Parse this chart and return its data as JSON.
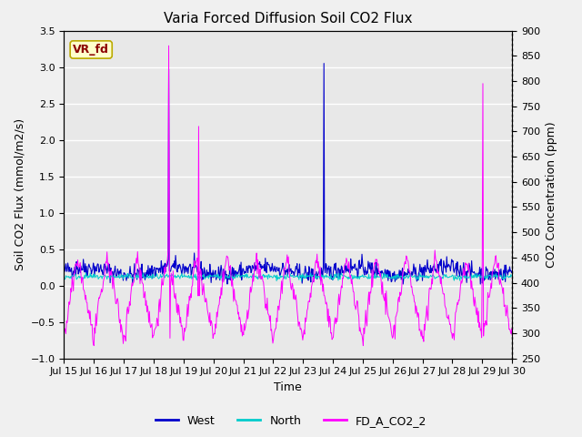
{
  "title": "Varia Forced Diffusion Soil CO2 Flux",
  "xlabel": "Time",
  "ylabel_left": "Soil CO2 Flux (mmol/m2/s)",
  "ylabel_right": "CO2 Concentration (ppm)",
  "ylim_left": [
    -1.0,
    3.5
  ],
  "ylim_right": [
    250,
    900
  ],
  "xtick_labels": [
    "Jul 15",
    "Jul 16",
    "Jul 17",
    "Jul 18",
    "Jul 19",
    "Jul 20",
    "Jul 21",
    "Jul 22",
    "Jul 23",
    "Jul 24",
    "Jul 25",
    "Jul 26",
    "Jul 27",
    "Jul 28",
    "Jul 29",
    "Jul 30"
  ],
  "annotation_text": "VR_fd",
  "color_west": "#0000cc",
  "color_north": "#00cccc",
  "color_co2": "#ff00ff",
  "legend_labels": [
    "West",
    "North",
    "FD_A_CO2_2"
  ],
  "bg_color": "#e8e8e8",
  "grid_color": "#ffffff",
  "title_fontsize": 11,
  "label_fontsize": 9,
  "tick_fontsize": 8,
  "legend_fontsize": 9,
  "left_yticks": [
    -1.0,
    -0.5,
    0.0,
    0.5,
    1.0,
    1.5,
    2.0,
    2.5,
    3.0,
    3.5
  ],
  "right_yticks": [
    250,
    300,
    350,
    400,
    450,
    500,
    550,
    600,
    650,
    700,
    750,
    800,
    850,
    900
  ]
}
